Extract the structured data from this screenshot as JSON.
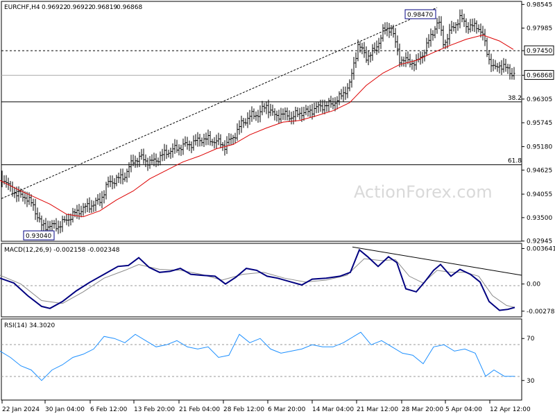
{
  "header": {
    "symbol": "EURCHF,H4",
    "open": "0.96922",
    "high": "0.96922",
    "low": "0.96819",
    "close": "0.96868"
  },
  "watermark": "ActionForex.com",
  "colors": {
    "bar": "#000000",
    "ma": "#dd0000",
    "macd": "#000080",
    "signal": "#8a8a8a",
    "grid": "#999999",
    "trend": "#000000",
    "label_border": "#000080"
  },
  "chart_data": [
    {
      "type": "line",
      "title": "",
      "subtitle": "",
      "description": "EURCHF 4-hour bars with red moving average",
      "x_ticks": [
        "22 Jan 2024",
        "30 Jan 04:00",
        "6 Feb 12:00",
        "13 Feb 20:00",
        "21 Feb 04:00",
        "28 Feb 12:00",
        "6 Mar 20:00",
        "14 Mar 04:00",
        "21 Mar 12:00",
        "28 Mar 20:00",
        "5 Apr 04:00",
        "12 Apr 12:00"
      ],
      "y_ticks": [
        "0.98545",
        "0.97985",
        "0.97450",
        "0.96868",
        "0.96305",
        "0.95745",
        "0.95180",
        "0.94625",
        "0.94055",
        "0.93500",
        "0.92945"
      ],
      "ylim": [
        0.9294,
        0.986
      ],
      "boxed_labels": {
        "swing_high": "0.98470",
        "swing_low": "0.93040"
      },
      "fib_levels": [
        {
          "label": "38.2",
          "value": 0.9624
        },
        {
          "label": "61.8",
          "value": 0.9475
        }
      ],
      "horizontal_levels": {
        "dashed": 0.9745,
        "current": 0.96868
      },
      "price_points": [
        [
          0,
          0.945
        ],
        [
          12,
          0.9425
        ],
        [
          24,
          0.9405
        ],
        [
          36,
          0.94
        ],
        [
          48,
          0.9378
        ],
        [
          60,
          0.933
        ],
        [
          72,
          0.933
        ],
        [
          84,
          0.933
        ],
        [
          96,
          0.9345
        ],
        [
          108,
          0.936
        ],
        [
          120,
          0.9372
        ],
        [
          132,
          0.938
        ],
        [
          144,
          0.939
        ],
        [
          156,
          0.9432
        ],
        [
          168,
          0.944
        ],
        [
          180,
          0.945
        ],
        [
          192,
          0.9485
        ],
        [
          204,
          0.9492
        ],
        [
          216,
          0.948
        ],
        [
          228,
          0.949
        ],
        [
          240,
          0.9505
        ],
        [
          252,
          0.9512
        ],
        [
          264,
          0.952
        ],
        [
          276,
          0.9525
        ],
        [
          288,
          0.9535
        ],
        [
          300,
          0.9535
        ],
        [
          312,
          0.953
        ],
        [
          324,
          0.952
        ],
        [
          336,
          0.954
        ],
        [
          348,
          0.9572
        ],
        [
          360,
          0.959
        ],
        [
          372,
          0.9595
        ],
        [
          384,
          0.9615
        ],
        [
          396,
          0.959
        ],
        [
          408,
          0.9595
        ],
        [
          420,
          0.9588
        ],
        [
          432,
          0.9598
        ],
        [
          444,
          0.96
        ],
        [
          456,
          0.961
        ],
        [
          468,
          0.9615
        ],
        [
          480,
          0.962
        ],
        [
          492,
          0.9638
        ],
        [
          504,
          0.9665
        ],
        [
          516,
          0.976
        ],
        [
          528,
          0.973
        ],
        [
          540,
          0.9745
        ],
        [
          552,
          0.979
        ],
        [
          564,
          0.98
        ],
        [
          576,
          0.9725
        ],
        [
          588,
          0.972
        ],
        [
          600,
          0.9715
        ],
        [
          612,
          0.9745
        ],
        [
          624,
          0.979
        ],
        [
          632,
          0.9815
        ],
        [
          640,
          0.976
        ],
        [
          652,
          0.98
        ],
        [
          664,
          0.9822
        ],
        [
          676,
          0.98
        ],
        [
          688,
          0.9805
        ],
        [
          696,
          0.978
        ],
        [
          704,
          0.973
        ],
        [
          712,
          0.97
        ],
        [
          720,
          0.9712
        ],
        [
          732,
          0.97
        ],
        [
          742,
          0.9687
        ]
      ],
      "ma_points": [
        [
          0,
          0.9438
        ],
        [
          24,
          0.9418
        ],
        [
          48,
          0.94
        ],
        [
          72,
          0.9382
        ],
        [
          96,
          0.9358
        ],
        [
          120,
          0.9352
        ],
        [
          144,
          0.9366
        ],
        [
          168,
          0.9392
        ],
        [
          192,
          0.9413
        ],
        [
          216,
          0.9442
        ],
        [
          240,
          0.9462
        ],
        [
          264,
          0.9482
        ],
        [
          288,
          0.9496
        ],
        [
          312,
          0.9513
        ],
        [
          336,
          0.9523
        ],
        [
          360,
          0.9546
        ],
        [
          384,
          0.9562
        ],
        [
          408,
          0.9576
        ],
        [
          432,
          0.958
        ],
        [
          456,
          0.9591
        ],
        [
          480,
          0.9603
        ],
        [
          504,
          0.9622
        ],
        [
          528,
          0.9663
        ],
        [
          552,
          0.9692
        ],
        [
          576,
          0.9712
        ],
        [
          600,
          0.9722
        ],
        [
          624,
          0.974
        ],
        [
          648,
          0.9757
        ],
        [
          672,
          0.9772
        ],
        [
          696,
          0.9782
        ],
        [
          720,
          0.9768
        ],
        [
          740,
          0.9748
        ]
      ]
    },
    {
      "type": "line",
      "title": "MACD(12,26,9) -0.002158 -0.002348",
      "y_ticks": [
        "0.003641",
        "0.00",
        "-0.002788"
      ],
      "ylim": [
        -0.0033,
        0.0041
      ],
      "macd_points": [
        [
          0,
          0.0006
        ],
        [
          20,
          0.0001
        ],
        [
          40,
          -0.0012
        ],
        [
          60,
          -0.0023
        ],
        [
          72,
          -0.0025
        ],
        [
          90,
          -0.0018
        ],
        [
          110,
          -0.0007
        ],
        [
          130,
          0.0002
        ],
        [
          150,
          0.001
        ],
        [
          170,
          0.0018
        ],
        [
          185,
          0.0019
        ],
        [
          200,
          0.0027
        ],
        [
          215,
          0.0017
        ],
        [
          230,
          0.0012
        ],
        [
          245,
          0.0013
        ],
        [
          260,
          0.0016
        ],
        [
          275,
          0.001
        ],
        [
          290,
          0.0009
        ],
        [
          310,
          0.0008
        ],
        [
          325,
          0.0
        ],
        [
          340,
          0.0007
        ],
        [
          355,
          0.0016
        ],
        [
          370,
          0.0014
        ],
        [
          385,
          0.0008
        ],
        [
          400,
          0.0006
        ],
        [
          420,
          0.0002
        ],
        [
          435,
          -0.0001
        ],
        [
          450,
          0.0005
        ],
        [
          470,
          0.0006
        ],
        [
          490,
          0.0008
        ],
        [
          505,
          0.0012
        ],
        [
          518,
          0.0035
        ],
        [
          530,
          0.0028
        ],
        [
          545,
          0.0018
        ],
        [
          560,
          0.0028
        ],
        [
          572,
          0.0022
        ],
        [
          585,
          -0.0005
        ],
        [
          600,
          -0.0008
        ],
        [
          612,
          0.0002
        ],
        [
          625,
          0.0014
        ],
        [
          635,
          0.002
        ],
        [
          650,
          0.0008
        ],
        [
          663,
          0.0015
        ],
        [
          678,
          0.001
        ],
        [
          692,
          0.0002
        ],
        [
          705,
          -0.0018
        ],
        [
          720,
          -0.0027
        ],
        [
          732,
          -0.0026
        ],
        [
          742,
          -0.0024
        ]
      ],
      "signal_points": [
        [
          0,
          0.0009
        ],
        [
          30,
          0.0
        ],
        [
          60,
          -0.0017
        ],
        [
          90,
          -0.002
        ],
        [
          120,
          -0.0008
        ],
        [
          150,
          0.0006
        ],
        [
          180,
          0.0014
        ],
        [
          200,
          0.002
        ],
        [
          230,
          0.0015
        ],
        [
          260,
          0.0014
        ],
        [
          290,
          0.001
        ],
        [
          320,
          0.0004
        ],
        [
          350,
          0.001
        ],
        [
          380,
          0.0012
        ],
        [
          410,
          0.0006
        ],
        [
          440,
          0.0002
        ],
        [
          470,
          0.0004
        ],
        [
          500,
          0.0009
        ],
        [
          525,
          0.0026
        ],
        [
          550,
          0.0024
        ],
        [
          570,
          0.0025
        ],
        [
          590,
          0.0008
        ],
        [
          610,
          0.0001
        ],
        [
          630,
          0.0014
        ],
        [
          650,
          0.0012
        ],
        [
          670,
          0.0012
        ],
        [
          690,
          0.0008
        ],
        [
          710,
          -0.0012
        ],
        [
          730,
          -0.0022
        ],
        [
          742,
          -0.0024
        ]
      ],
      "trend_line": [
        [
          508,
          0.0038
        ],
        [
          752,
          0.0009
        ]
      ]
    },
    {
      "type": "line",
      "title": "RSI(14) 34.3020",
      "y_ticks": [
        "70",
        "30"
      ],
      "ylim": [
        12,
        88
      ],
      "rsi_points": [
        [
          0,
          58
        ],
        [
          15,
          52
        ],
        [
          30,
          44
        ],
        [
          45,
          40
        ],
        [
          60,
          30
        ],
        [
          75,
          40
        ],
        [
          90,
          45
        ],
        [
          105,
          52
        ],
        [
          120,
          55
        ],
        [
          135,
          60
        ],
        [
          150,
          72
        ],
        [
          165,
          70
        ],
        [
          180,
          66
        ],
        [
          195,
          74
        ],
        [
          210,
          68
        ],
        [
          225,
          62
        ],
        [
          240,
          64
        ],
        [
          255,
          68
        ],
        [
          270,
          62
        ],
        [
          285,
          60
        ],
        [
          300,
          62
        ],
        [
          315,
          52
        ],
        [
          330,
          54
        ],
        [
          345,
          74
        ],
        [
          360,
          66
        ],
        [
          375,
          70
        ],
        [
          390,
          60
        ],
        [
          405,
          56
        ],
        [
          420,
          58
        ],
        [
          435,
          60
        ],
        [
          450,
          64
        ],
        [
          465,
          62
        ],
        [
          480,
          62
        ],
        [
          495,
          66
        ],
        [
          510,
          72
        ],
        [
          520,
          76
        ],
        [
          535,
          64
        ],
        [
          550,
          68
        ],
        [
          565,
          62
        ],
        [
          580,
          56
        ],
        [
          595,
          54
        ],
        [
          610,
          46
        ],
        [
          625,
          62
        ],
        [
          640,
          64
        ],
        [
          655,
          58
        ],
        [
          670,
          60
        ],
        [
          685,
          56
        ],
        [
          700,
          34
        ],
        [
          712,
          40
        ],
        [
          727,
          34
        ],
        [
          742,
          34
        ]
      ]
    }
  ]
}
